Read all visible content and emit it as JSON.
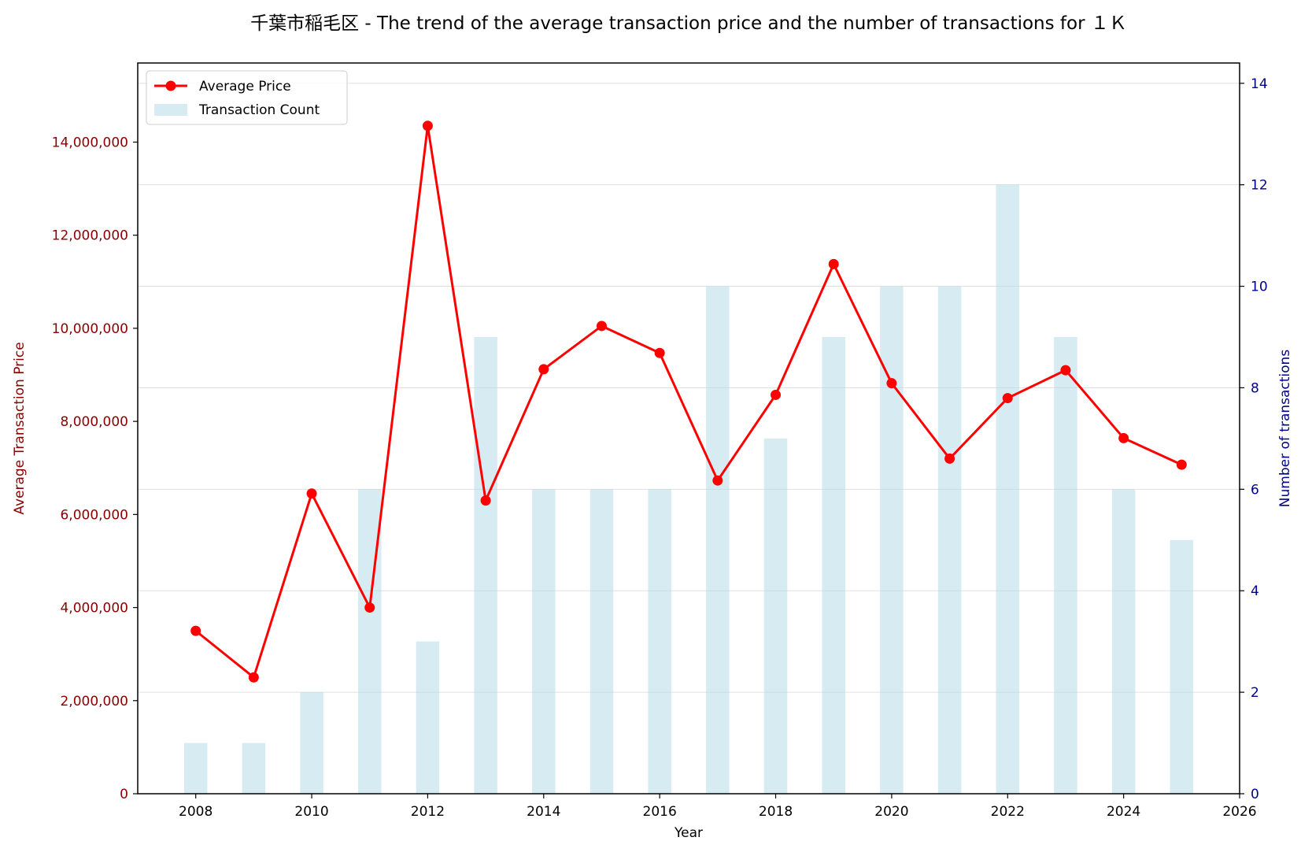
{
  "chart_data": {
    "type": "line+bar",
    "title": "千葉市稲毛区 - The trend of the average transaction price and the number of transactions for １Ｋ",
    "xlabel": "Year",
    "ylabel_left": "Average Transaction Price",
    "ylabel_right": "Number of transactions",
    "x": [
      2008,
      2009,
      2010,
      2011,
      2012,
      2013,
      2014,
      2015,
      2016,
      2017,
      2018,
      2019,
      2020,
      2021,
      2022,
      2023,
      2024,
      2025
    ],
    "series": [
      {
        "name": "Average Price",
        "axis": "left",
        "kind": "line",
        "color": "#ff0000",
        "values": [
          3500000,
          2500000,
          6450000,
          4000000,
          14350000,
          6300000,
          9120000,
          10050000,
          9470000,
          6730000,
          8570000,
          11380000,
          8820000,
          7200000,
          8500000,
          9100000,
          7640000,
          7070000
        ]
      },
      {
        "name": "Transaction Count",
        "axis": "right",
        "kind": "bar",
        "color": "#add8e6",
        "values": [
          1,
          1,
          2,
          6,
          3,
          9,
          6,
          6,
          6,
          10,
          7,
          9,
          10,
          10,
          12,
          9,
          6,
          5
        ]
      }
    ],
    "xlim": [
      2007,
      2026
    ],
    "xticks": [
      "2008",
      "2010",
      "2012",
      "2014",
      "2016",
      "2018",
      "2020",
      "2022",
      "2024",
      "2026"
    ],
    "ylim_left": [
      0,
      15700000
    ],
    "yticks_left": [
      "0",
      "2,000,000",
      "4,000,000",
      "6,000,000",
      "8,000,000",
      "10,000,000",
      "12,000,000",
      "14,000,000"
    ],
    "ylim_right": [
      0,
      14.4
    ],
    "yticks_right": [
      "0",
      "2",
      "4",
      "6",
      "8",
      "10",
      "12",
      "14"
    ],
    "grid": true,
    "legend_position": "top-left",
    "colors": {
      "left_axis": "#8b0000",
      "right_axis": "#00008b",
      "line": "#ff0000",
      "bar": "#add8e6"
    }
  }
}
